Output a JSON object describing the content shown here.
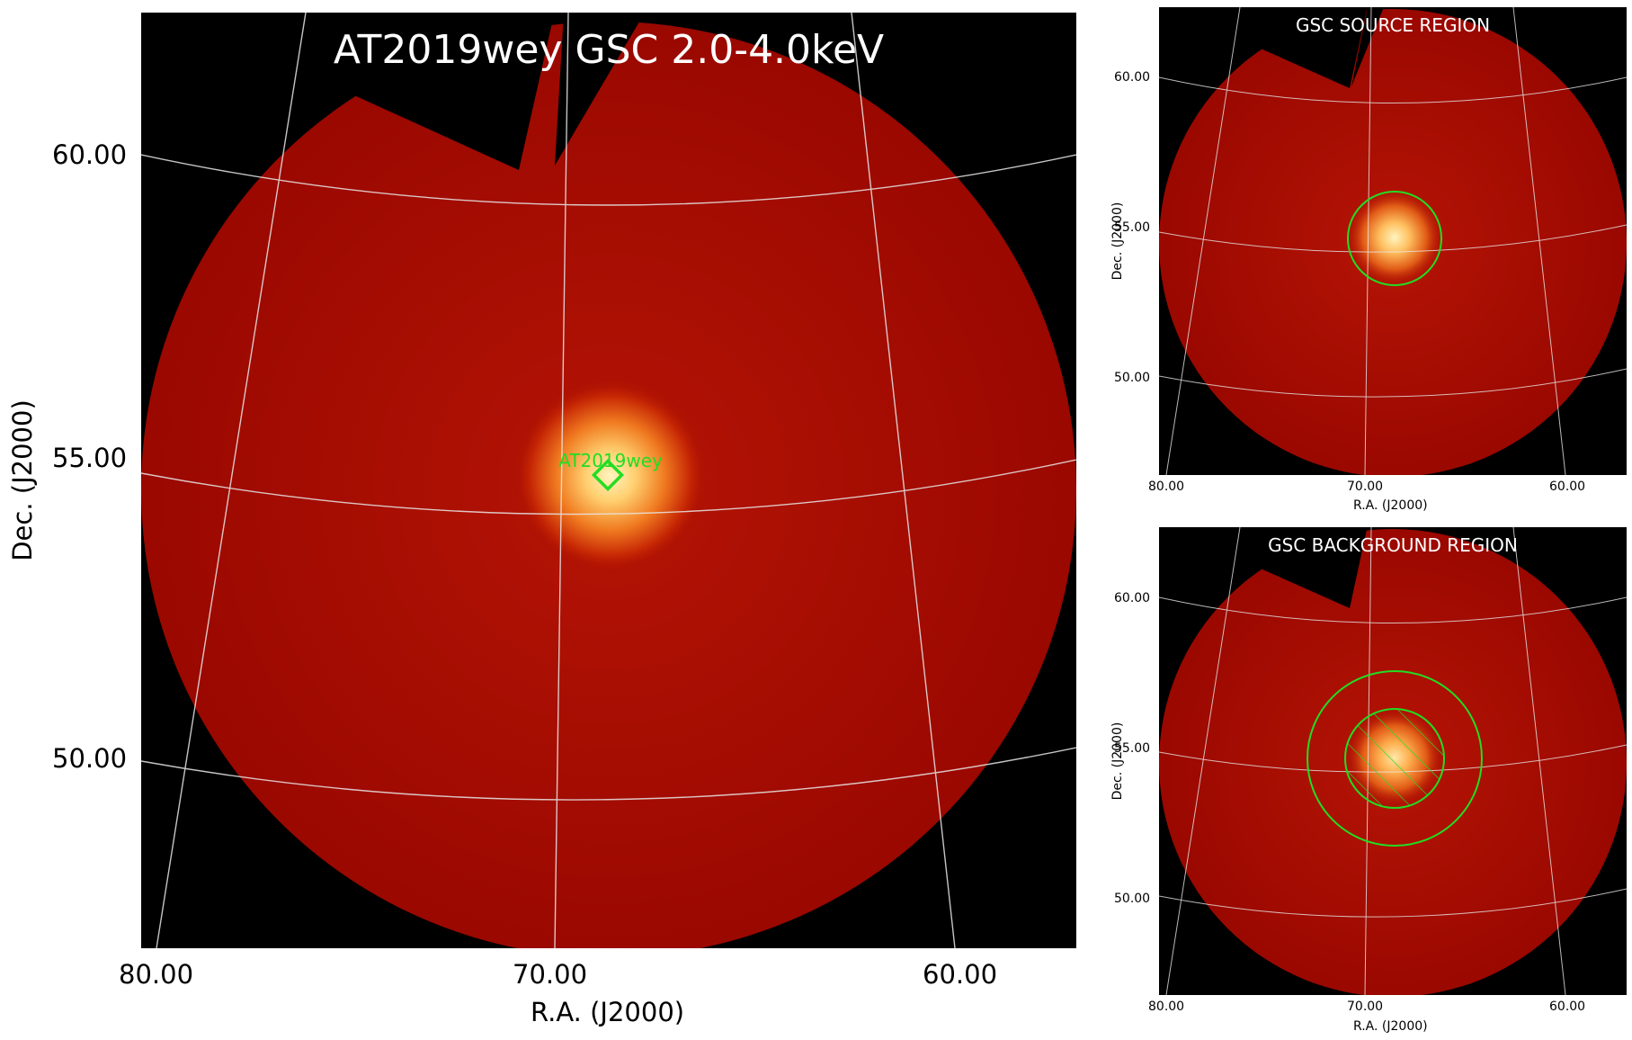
{
  "main": {
    "title": "AT2019wey GSC 2.0-4.0keV",
    "xlabel": "R.A. (J2000)",
    "ylabel": "Dec. (J2000)",
    "xticks": [
      "80.00",
      "70.00",
      "60.00"
    ],
    "yticks": [
      "60.00",
      "55.00",
      "50.00"
    ],
    "source_label": "AT2019wey"
  },
  "source_panel": {
    "title": "GSC SOURCE REGION",
    "xlabel": "R.A. (J2000)",
    "ylabel": "Dec. (J2000)",
    "xticks": [
      "80.00",
      "70.00",
      "60.00"
    ],
    "yticks": [
      "60.00",
      "55.00",
      "50.00"
    ]
  },
  "background_panel": {
    "title": "GSC BACKGROUND REGION",
    "xlabel": "R.A. (J2000)",
    "ylabel": "Dec. (J2000)",
    "xticks": [
      "80.00",
      "70.00",
      "60.00"
    ],
    "yticks": [
      "60.00",
      "55.00",
      "50.00"
    ]
  },
  "colors": {
    "field": "#a80a00",
    "hotspot": "#ffd070",
    "region": "#22dd22",
    "grid": "#e8e8e8",
    "outside": "#000000"
  }
}
